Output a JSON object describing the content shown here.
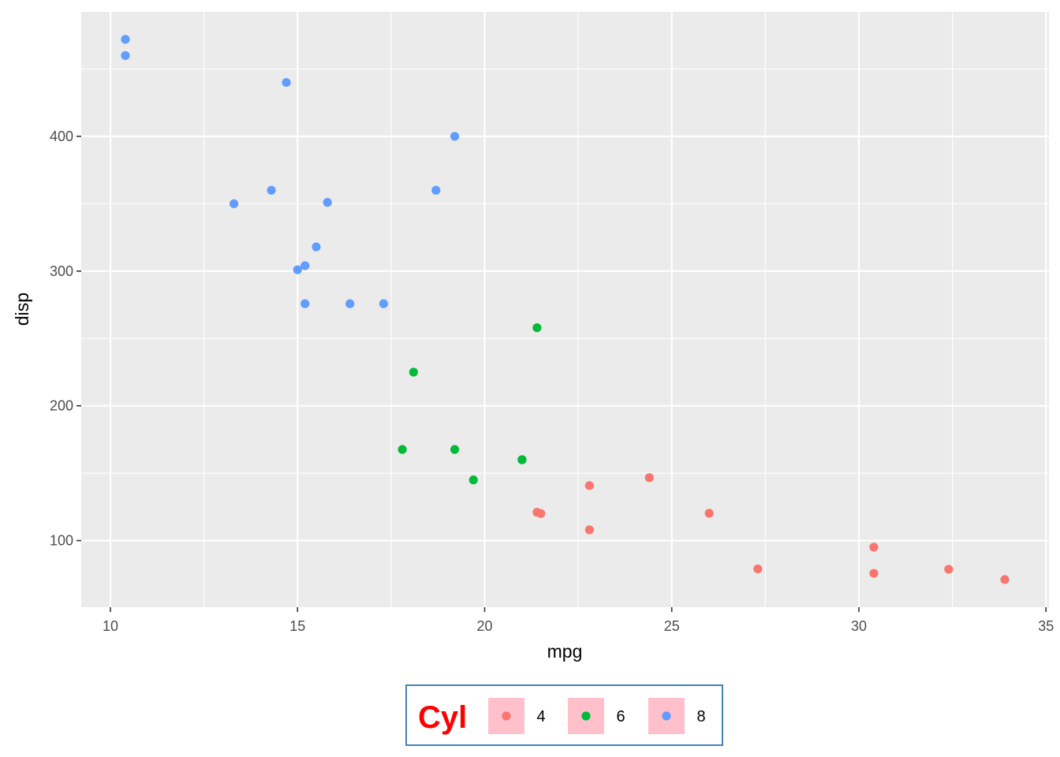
{
  "chart_data": {
    "type": "scatter",
    "xlabel": "mpg",
    "ylabel": "disp",
    "xlim": [
      9.22,
      35.08
    ],
    "ylim": [
      50.57,
      492.43
    ],
    "x_ticks": [
      10,
      15,
      20,
      25,
      30,
      35
    ],
    "y_ticks": [
      100,
      200,
      300,
      400
    ],
    "grid": true,
    "panel_background": "#EBEBEB",
    "legend": {
      "title": "Cyl",
      "position": "bottom",
      "title_color": "#FF0000",
      "key_background": "#FFC0CB",
      "border_color": "#4682B4"
    },
    "series": [
      {
        "name": "4",
        "color": "#F8766D",
        "points": [
          [
            22.8,
            108
          ],
          [
            24.4,
            146.7
          ],
          [
            22.8,
            140.8
          ],
          [
            32.4,
            78.7
          ],
          [
            30.4,
            75.7
          ],
          [
            33.9,
            71.1
          ],
          [
            21.5,
            120.1
          ],
          [
            27.3,
            79
          ],
          [
            26.0,
            120.3
          ],
          [
            30.4,
            95.1
          ],
          [
            21.4,
            121
          ]
        ]
      },
      {
        "name": "6",
        "color": "#00BA38",
        "points": [
          [
            21.0,
            160
          ],
          [
            21.0,
            160
          ],
          [
            21.4,
            258
          ],
          [
            18.1,
            225
          ],
          [
            19.2,
            167.6
          ],
          [
            17.8,
            167.6
          ],
          [
            19.7,
            145
          ]
        ]
      },
      {
        "name": "8",
        "color": "#619CFF",
        "points": [
          [
            18.7,
            360
          ],
          [
            14.3,
            360
          ],
          [
            16.4,
            275.8
          ],
          [
            17.3,
            275.8
          ],
          [
            15.2,
            275.8
          ],
          [
            10.4,
            472
          ],
          [
            10.4,
            460
          ],
          [
            14.7,
            440
          ],
          [
            15.5,
            318
          ],
          [
            15.2,
            304
          ],
          [
            13.3,
            350
          ],
          [
            19.2,
            400
          ],
          [
            15.8,
            351
          ],
          [
            15.0,
            301
          ]
        ]
      }
    ]
  }
}
